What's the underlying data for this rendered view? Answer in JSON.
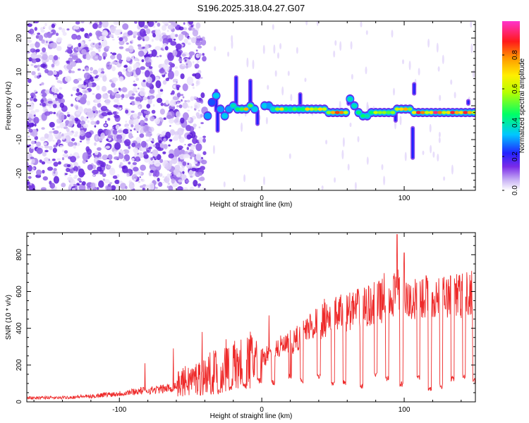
{
  "title": "S196.2025.318.04.27.G07",
  "chart_data": [
    {
      "type": "heatmap",
      "xlabel": "Height of straight line (km)",
      "ylabel": "Frequency (Hz)",
      "xlim": [
        -165,
        150
      ],
      "ylim": [
        -25,
        25
      ],
      "xticks": [
        -100,
        0,
        100
      ],
      "yticks": [
        -20,
        -10,
        0,
        10,
        20
      ],
      "noise_region_x": [
        -165,
        -40
      ],
      "trace_points": [
        {
          "x": -38,
          "y": -3,
          "a": 0.3
        },
        {
          "x": -35,
          "y": 1,
          "a": 0.25
        },
        {
          "x": -32,
          "y": 3,
          "a": 0.35
        },
        {
          "x": -29,
          "y": -1,
          "a": 0.3
        },
        {
          "x": -26,
          "y": -3,
          "a": 0.35
        },
        {
          "x": -23,
          "y": -1,
          "a": 0.3
        },
        {
          "x": -20,
          "y": 0,
          "a": 0.4
        },
        {
          "x": -17,
          "y": -1,
          "a": 0.45
        },
        {
          "x": -14,
          "y": -1,
          "a": 0.5
        },
        {
          "x": -11,
          "y": -1,
          "a": 0.75
        },
        {
          "x": -8,
          "y": 0,
          "a": 0.5
        },
        {
          "x": -5,
          "y": -1,
          "a": 0.35
        },
        {
          "x": 2,
          "y": 0,
          "a": 0.35
        },
        {
          "x": 5,
          "y": 0,
          "a": 0.3
        },
        {
          "x": 8,
          "y": -1,
          "a": 0.4
        },
        {
          "x": 11,
          "y": -1,
          "a": 0.55
        },
        {
          "x": 14,
          "y": -1,
          "a": 0.7
        },
        {
          "x": 17,
          "y": -1,
          "a": 0.45
        },
        {
          "x": 20,
          "y": -1,
          "a": 0.4
        },
        {
          "x": 23,
          "y": -1,
          "a": 0.5
        },
        {
          "x": 26,
          "y": -1,
          "a": 0.45
        },
        {
          "x": 29,
          "y": -1,
          "a": 0.45
        },
        {
          "x": 32,
          "y": -1,
          "a": 0.7
        },
        {
          "x": 35,
          "y": -1,
          "a": 0.6
        },
        {
          "x": 38,
          "y": -1,
          "a": 0.55
        },
        {
          "x": 41,
          "y": -1,
          "a": 0.7
        },
        {
          "x": 44,
          "y": -1,
          "a": 0.6
        },
        {
          "x": 47,
          "y": -2,
          "a": 0.55
        },
        {
          "x": 50,
          "y": -2,
          "a": 0.75
        },
        {
          "x": 53,
          "y": -2,
          "a": 0.85
        },
        {
          "x": 56,
          "y": -2,
          "a": 0.8
        },
        {
          "x": 59,
          "y": -2,
          "a": 0.6
        },
        {
          "x": 62,
          "y": 2,
          "a": 0.4
        },
        {
          "x": 65,
          "y": 0,
          "a": 0.4
        },
        {
          "x": 68,
          "y": -2,
          "a": 0.45
        },
        {
          "x": 71,
          "y": -3,
          "a": 0.45
        },
        {
          "x": 74,
          "y": -3,
          "a": 0.4
        },
        {
          "x": 77,
          "y": -2,
          "a": 0.45
        },
        {
          "x": 80,
          "y": -2,
          "a": 0.6
        },
        {
          "x": 83,
          "y": -2,
          "a": 0.55
        },
        {
          "x": 86,
          "y": -2,
          "a": 0.55
        },
        {
          "x": 89,
          "y": -2,
          "a": 0.5
        },
        {
          "x": 92,
          "y": -2,
          "a": 0.55
        },
        {
          "x": 95,
          "y": -1,
          "a": 0.6
        },
        {
          "x": 98,
          "y": -1,
          "a": 0.7
        },
        {
          "x": 101,
          "y": -1,
          "a": 0.75
        },
        {
          "x": 104,
          "y": -1,
          "a": 0.55
        },
        {
          "x": 107,
          "y": -2,
          "a": 0.65
        },
        {
          "x": 110,
          "y": -2,
          "a": 0.9
        },
        {
          "x": 113,
          "y": -2,
          "a": 0.8
        },
        {
          "x": 116,
          "y": -2,
          "a": 0.6
        },
        {
          "x": 119,
          "y": -2,
          "a": 0.7
        },
        {
          "x": 122,
          "y": -2,
          "a": 0.95
        },
        {
          "x": 125,
          "y": -2,
          "a": 0.8
        },
        {
          "x": 128,
          "y": -2,
          "a": 0.6
        },
        {
          "x": 131,
          "y": -2,
          "a": 0.7
        },
        {
          "x": 134,
          "y": -2,
          "a": 0.9
        },
        {
          "x": 137,
          "y": -2,
          "a": 0.75
        },
        {
          "x": 140,
          "y": -2,
          "a": 0.7
        },
        {
          "x": 143,
          "y": -2,
          "a": 0.9
        },
        {
          "x": 146,
          "y": -2,
          "a": 0.75
        },
        {
          "x": 149,
          "y": -2,
          "a": 0.6
        }
      ],
      "vertical_streaks": [
        {
          "x": -32,
          "y0": -2,
          "y1": 5
        },
        {
          "x": -31,
          "y0": -8,
          "y1": -1
        },
        {
          "x": -18,
          "y0": 0,
          "y1": 9
        },
        {
          "x": -8,
          "y0": -1,
          "y1": 8
        },
        {
          "x": -3,
          "y0": -6,
          "y1": -1
        },
        {
          "x": 27,
          "y0": 0,
          "y1": 4
        },
        {
          "x": 61,
          "y0": 0,
          "y1": 3
        },
        {
          "x": 94,
          "y0": -5,
          "y1": -1
        },
        {
          "x": 107,
          "y0": 3,
          "y1": 7
        },
        {
          "x": 106,
          "y0": -16,
          "y1": -6
        },
        {
          "x": 145,
          "y0": 0,
          "y1": 2
        }
      ],
      "colorbar": {
        "label": "Normalized spectral amplitude",
        "range": [
          0.0,
          1.0
        ],
        "ticks": [
          "0.0",
          "0.2",
          "0.4",
          "0.6",
          "0.8"
        ],
        "colormap": "white-purple-blue-cyan-green-yellow-orange-red-magenta"
      }
    },
    {
      "type": "line",
      "xlabel": "Height of straight line (km)",
      "ylabel": "SNR (10 * v/v)",
      "xlim": [
        -165,
        150
      ],
      "ylim": [
        0,
        920
      ],
      "xticks": [
        -100,
        0,
        100
      ],
      "yticks": [
        0,
        200,
        400,
        600,
        800
      ],
      "line_color": "#ee2a2a",
      "x": [
        -165,
        -160,
        -155,
        -150,
        -145,
        -140,
        -135,
        -130,
        -125,
        -120,
        -115,
        -110,
        -105,
        -100,
        -95,
        -90,
        -85,
        -80,
        -75,
        -70,
        -65,
        -60,
        -55,
        -50,
        -45,
        -40,
        -35,
        -30,
        -25,
        -20,
        -15,
        -10,
        -5,
        0,
        5,
        10,
        15,
        20,
        25,
        30,
        35,
        40,
        45,
        50,
        55,
        60,
        65,
        70,
        75,
        80,
        85,
        90,
        95,
        100,
        105,
        110,
        115,
        120,
        125,
        130,
        135,
        140,
        145,
        150
      ],
      "y": [
        25,
        20,
        22,
        24,
        21,
        23,
        25,
        27,
        30,
        28,
        35,
        40,
        42,
        45,
        50,
        55,
        60,
        62,
        65,
        70,
        75,
        90,
        110,
        120,
        130,
        140,
        160,
        170,
        180,
        190,
        200,
        220,
        240,
        240,
        260,
        290,
        300,
        310,
        340,
        380,
        420,
        430,
        450,
        460,
        480,
        490,
        500,
        510,
        520,
        540,
        550,
        560,
        600,
        560,
        540,
        560,
        570,
        560,
        560,
        570,
        580,
        580,
        590,
        600
      ],
      "dips": [
        {
          "x": -30,
          "y": 40
        },
        {
          "x": -22,
          "y": 60
        },
        {
          "x": -12,
          "y": 70
        },
        {
          "x": -2,
          "y": 100
        },
        {
          "x": 8,
          "y": 90
        },
        {
          "x": 20,
          "y": 120
        },
        {
          "x": 28,
          "y": 100
        },
        {
          "x": 40,
          "y": 120
        },
        {
          "x": 50,
          "y": 80
        },
        {
          "x": 58,
          "y": 90
        },
        {
          "x": 70,
          "y": 70
        },
        {
          "x": 80,
          "y": 130
        },
        {
          "x": 88,
          "y": 110
        },
        {
          "x": 98,
          "y": 80
        },
        {
          "x": 110,
          "y": 120
        },
        {
          "x": 118,
          "y": 60
        },
        {
          "x": 126,
          "y": 70
        },
        {
          "x": 134,
          "y": 110
        },
        {
          "x": 142,
          "y": 120
        },
        {
          "x": 149,
          "y": 100
        }
      ],
      "spikes": [
        {
          "x": -82,
          "y": 210
        },
        {
          "x": -62,
          "y": 290
        },
        {
          "x": -42,
          "y": 380
        },
        {
          "x": -25,
          "y": 340
        },
        {
          "x": 5,
          "y": 470
        },
        {
          "x": 20,
          "y": 390
        },
        {
          "x": 44,
          "y": 560
        },
        {
          "x": 86,
          "y": 700
        },
        {
          "x": 95,
          "y": 910
        },
        {
          "x": 100,
          "y": 810
        },
        {
          "x": 138,
          "y": 660
        }
      ]
    }
  ]
}
